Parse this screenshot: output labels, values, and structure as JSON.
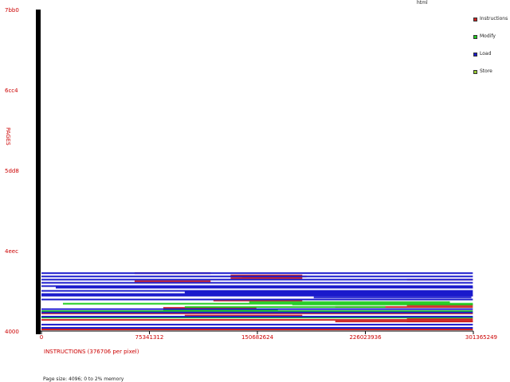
{
  "title": "html",
  "footer": "Page size: 4096; 0 to 2% memory",
  "chart_data": {
    "type": "scatter",
    "title": "html",
    "xlabel": "INSTRUCTIONS (376706 per pixel)",
    "ylabel": "PAGES",
    "xlim": [
      0,
      301365249
    ],
    "ylim": [
      "4000",
      "7bb0"
    ],
    "x_ticks": [
      "0",
      "75341312",
      "150682624",
      "226023936",
      "301365249"
    ],
    "y_ticks": [
      "4000",
      "4eec",
      "5dd8",
      "6cc4",
      "7bb0"
    ],
    "legend_placement": "right",
    "series": [
      {
        "name": "Instructions",
        "color": "#cc2222",
        "segments": [
          [
            0,
            301,
            0.005
          ],
          [
            0,
            301,
            0.035
          ],
          [
            0,
            301,
            0.055
          ],
          [
            100,
            182,
            0.048
          ],
          [
            60,
            115,
            0.14
          ],
          [
            132,
            182,
            0.165
          ],
          [
            132,
            182,
            0.173
          ],
          [
            255,
            301,
            0.11
          ],
          [
            255,
            301,
            0.03
          ],
          [
            255,
            301,
            0.04
          ],
          [
            120,
            182,
            0.095
          ],
          [
            140,
            185,
            0.17
          ],
          [
            85,
            150,
            0.072
          ],
          [
            255,
            301,
            0.08
          ],
          [
            255,
            301,
            0.135
          ],
          [
            255,
            301,
            0.16
          ],
          [
            205,
            301,
            0.03
          ],
          [
            205,
            301,
            0.075
          ],
          [
            65,
            118,
            0.18
          ],
          [
            65,
            118,
            0.155
          ]
        ]
      },
      {
        "name": "Modify",
        "color": "#22cc22",
        "segments": [
          [
            0,
            301,
            0.042
          ],
          [
            0,
            301,
            0.062
          ],
          [
            15,
            301,
            0.085
          ],
          [
            145,
            285,
            0.09
          ],
          [
            175,
            301,
            0.083
          ],
          [
            85,
            165,
            0.065
          ],
          [
            100,
            240,
            0.075
          ]
        ]
      },
      {
        "name": "Load",
        "color": "#1a1acc",
        "segments": [
          [
            0,
            301,
            0.01
          ],
          [
            0,
            301,
            0.02
          ],
          [
            0,
            301,
            0.045
          ],
          [
            0,
            301,
            0.058
          ],
          [
            0,
            301,
            0.068
          ],
          [
            0,
            301,
            0.098
          ],
          [
            0,
            301,
            0.11
          ],
          [
            0,
            301,
            0.115
          ],
          [
            0,
            301,
            0.125
          ],
          [
            0,
            301,
            0.14
          ],
          [
            0,
            301,
            0.15
          ],
          [
            0,
            301,
            0.16
          ],
          [
            0,
            301,
            0.17
          ],
          [
            0,
            301,
            0.18
          ],
          [
            100,
            301,
            0.12
          ],
          [
            10,
            301,
            0.135
          ],
          [
            190,
            300,
            0.105
          ]
        ]
      },
      {
        "name": "Store",
        "color": "#99cc33",
        "segments": []
      }
    ]
  }
}
